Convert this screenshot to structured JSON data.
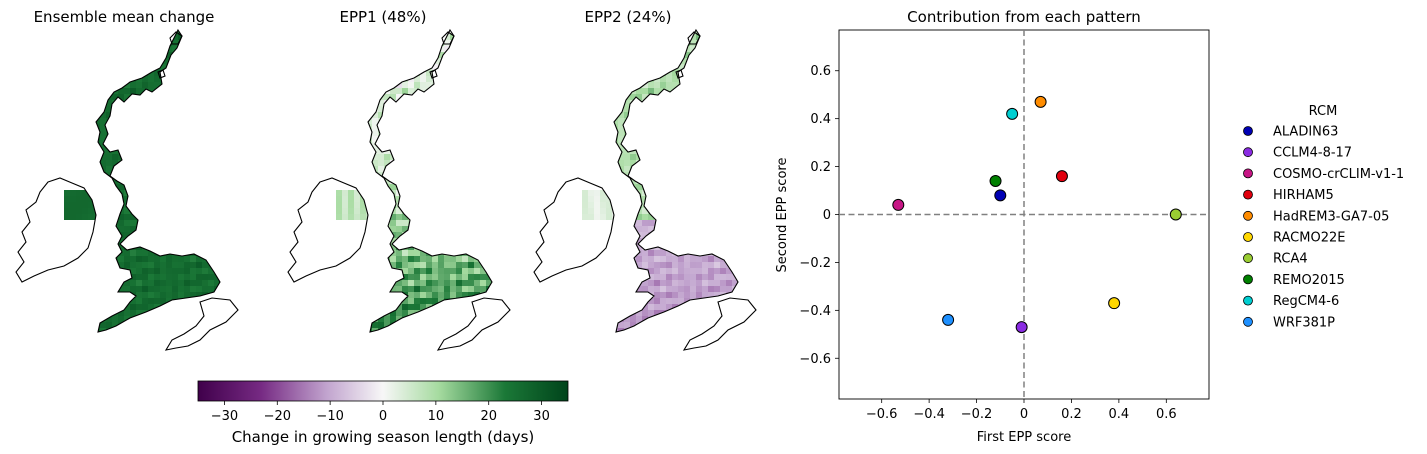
{
  "maps": [
    {
      "title": "Ensemble mean change",
      "pattern": "mean"
    },
    {
      "title": "EPP1 (48%)",
      "pattern": "epp1"
    },
    {
      "title": "EPP2 (24%)",
      "pattern": "epp2"
    }
  ],
  "colorbar": {
    "label": "Change in growing season length (days)",
    "ticks": [
      -30,
      -20,
      -10,
      0,
      10,
      20,
      30
    ],
    "range": [
      -35,
      35
    ],
    "colormap": [
      "#40004b",
      "#762a83",
      "#c2a5cf",
      "#f7f7f7",
      "#a6dba0",
      "#1b7837",
      "#00441b"
    ]
  },
  "chart_data": {
    "type": "scatter",
    "title": "Contribution from each pattern",
    "xlabel": "First EPP score",
    "ylabel": "Second EPP score",
    "xlim": [
      -0.78,
      0.78
    ],
    "ylim": [
      -0.77,
      0.77
    ],
    "xticks": [
      -0.6,
      -0.4,
      -0.2,
      0.0,
      0.2,
      0.4,
      0.6
    ],
    "yticks": [
      -0.6,
      -0.4,
      -0.2,
      0.0,
      0.2,
      0.4,
      0.6
    ],
    "grid": false,
    "reference_lines": {
      "x": 0,
      "y": 0
    },
    "legend_title": "RCM",
    "legend_position": "right",
    "points": [
      {
        "name": "ALADIN63",
        "x": -0.1,
        "y": 0.08,
        "color": "#0000b4"
      },
      {
        "name": "CCLM4-8-17",
        "x": -0.01,
        "y": -0.47,
        "color": "#8a2be2"
      },
      {
        "name": "COSMO-crCLIM-v1-1",
        "x": -0.53,
        "y": 0.04,
        "color": "#c71585"
      },
      {
        "name": "HIRHAM5",
        "x": 0.16,
        "y": 0.16,
        "color": "#e0000e"
      },
      {
        "name": "HadREM3-GA7-05",
        "x": 0.07,
        "y": 0.47,
        "color": "#ff8c00"
      },
      {
        "name": "RACMO22E",
        "x": 0.38,
        "y": -0.37,
        "color": "#ffd700"
      },
      {
        "name": "RCA4",
        "x": 0.64,
        "y": 0.0,
        "color": "#9acd32"
      },
      {
        "name": "REMO2015",
        "x": -0.12,
        "y": 0.14,
        "color": "#008000"
      },
      {
        "name": "RegCM4-6",
        "x": -0.05,
        "y": 0.42,
        "color": "#00ced1"
      },
      {
        "name": "WRF381P",
        "x": -0.32,
        "y": -0.44,
        "color": "#1e90ff"
      }
    ]
  }
}
